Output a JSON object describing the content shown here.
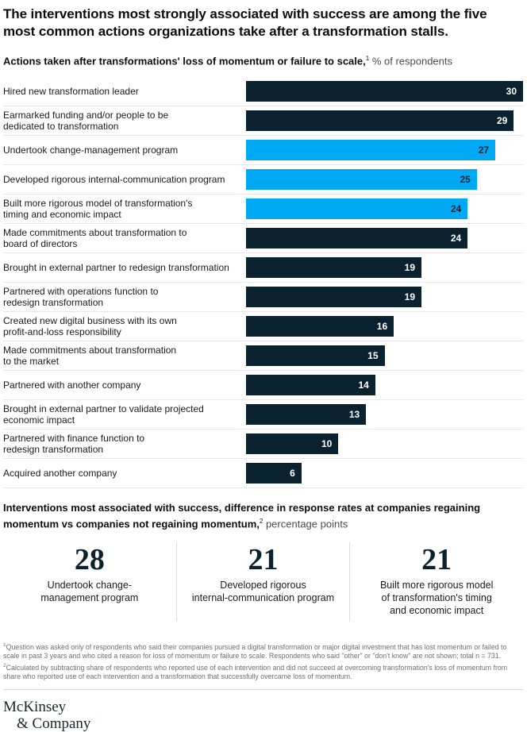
{
  "header": {
    "title": "The interventions most strongly associated with success are among the five most common actions organizations take after a transformation stalls.",
    "subtitle_bold": "Actions taken after transformations' loss of momentum or failure to scale,",
    "subtitle_regular": " % of respondents",
    "subtitle_sup": "1"
  },
  "chart_data": {
    "type": "bar",
    "orientation": "horizontal",
    "title": "Actions taken after transformations' loss of momentum or failure to scale, % of respondents",
    "xlabel": "% of respondents",
    "xlim": [
      0,
      30
    ],
    "grid": false,
    "colors": {
      "primary": "#0a2130",
      "highlight": "#00a9f4",
      "value_on_primary": "#ffffff"
    },
    "rows": [
      {
        "label": "Hired new transformation leader",
        "value": 30,
        "highlight": false
      },
      {
        "label": "Earmarked funding and/or people to be\ndedicated to transformation",
        "value": 29,
        "highlight": false
      },
      {
        "label": "Undertook change-management program",
        "value": 27,
        "highlight": true
      },
      {
        "label": "Developed rigorous internal-communication program",
        "value": 25,
        "highlight": true
      },
      {
        "label": "Built more rigorous model of transformation's\ntiming and economic impact",
        "value": 24,
        "highlight": true
      },
      {
        "label": "Made commitments about transformation to\nboard of directors",
        "value": 24,
        "highlight": false
      },
      {
        "label": "Brought in external partner to redesign transformation",
        "value": 19,
        "highlight": false
      },
      {
        "label": "Partnered with operations function to\nredesign transformation",
        "value": 19,
        "highlight": false
      },
      {
        "label": "Created new digital business with its own\nprofit-and-loss responsibility",
        "value": 16,
        "highlight": false
      },
      {
        "label": "Made commitments about transformation\nto the market",
        "value": 15,
        "highlight": false
      },
      {
        "label": "Partnered with another company",
        "value": 14,
        "highlight": false
      },
      {
        "label": "Brought in external partner to validate projected\neconomic impact",
        "value": 13,
        "highlight": false
      },
      {
        "label": "Partnered with finance function to\nredesign transformation",
        "value": 10,
        "highlight": false
      },
      {
        "label": "Acquired another company",
        "value": 6,
        "highlight": false
      }
    ]
  },
  "success_section": {
    "heading_bold": "Interventions most associated with success, difference in response rates at companies regaining momentum vs companies not regaining momentum,",
    "heading_sup": "2",
    "heading_regular": " percentage points",
    "stats": [
      {
        "value": "28",
        "label": "Undertook change-\nmanagement program"
      },
      {
        "value": "21",
        "label": "Developed rigorous\ninternal-communication program"
      },
      {
        "value": "21",
        "label": "Built more rigorous model\nof transformation's timing\nand economic impact"
      }
    ]
  },
  "footnotes": {
    "items": [
      {
        "mark": "1",
        "text": "Question was asked only of respondents who said their companies pursued a digital transformation or major digital investment that has lost momentum or failed to scale in past 3 years and who cited a reason for loss of momentum or failure to scale. Respondents who said \"other\" or \"don't know\" are not shown; total n = 731."
      },
      {
        "mark": "2",
        "text": "Calculated by subtracting share of respondents who reported use of each intervention and did not succeed at overcoming transformation's loss of momentum from share who reported use of each intervention and a transformation that successfully overcame loss of momentum."
      }
    ]
  },
  "footer": {
    "logo_line1": "McKinsey",
    "logo_line2": "& Company"
  }
}
